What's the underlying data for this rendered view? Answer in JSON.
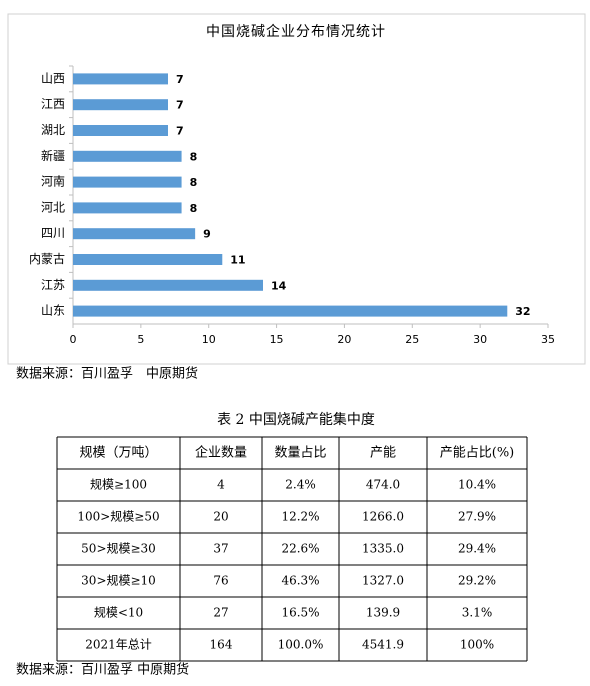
{
  "chart_data": {
    "type": "bar",
    "orientation": "horizontal",
    "title": "中国烧碱企业分布情况统计",
    "categories": [
      "山西",
      "江西",
      "湖北",
      "新疆",
      "河南",
      "河北",
      "四川",
      "内蒙古",
      "江苏",
      "山东"
    ],
    "values": [
      7,
      7,
      7,
      8,
      8,
      8,
      9,
      11,
      14,
      32
    ],
    "color": "#5b9bd5",
    "xlim": [
      0,
      35
    ],
    "xticks": [
      0,
      5,
      10,
      15,
      20,
      25,
      30,
      35
    ]
  },
  "chart_source": "数据来源：百川盈孚　中原期货",
  "table": {
    "title": "表 2  中国烧碱产能集中度",
    "header": [
      "规模（万吨）",
      "企业数量",
      "数量占比",
      "产能",
      "产能占比(%)"
    ],
    "rows": [
      [
        "规模≥100",
        "4",
        "2.4%",
        "474.0",
        "10.4%"
      ],
      [
        "100>规模≥50",
        "20",
        "12.2%",
        "1266.0",
        "27.9%"
      ],
      [
        "50>规模≥30",
        "37",
        "22.6%",
        "1335.0",
        "29.4%"
      ],
      [
        "30>规模≥10",
        "76",
        "46.3%",
        "1327.0",
        "29.2%"
      ],
      [
        "规模<10",
        "27",
        "16.5%",
        "139.9",
        "3.1%"
      ],
      [
        "2021年总计",
        "164",
        "100.0%",
        "4541.9",
        "100%"
      ]
    ]
  },
  "table_source": "数据来源：百川盈孚 中原期货"
}
